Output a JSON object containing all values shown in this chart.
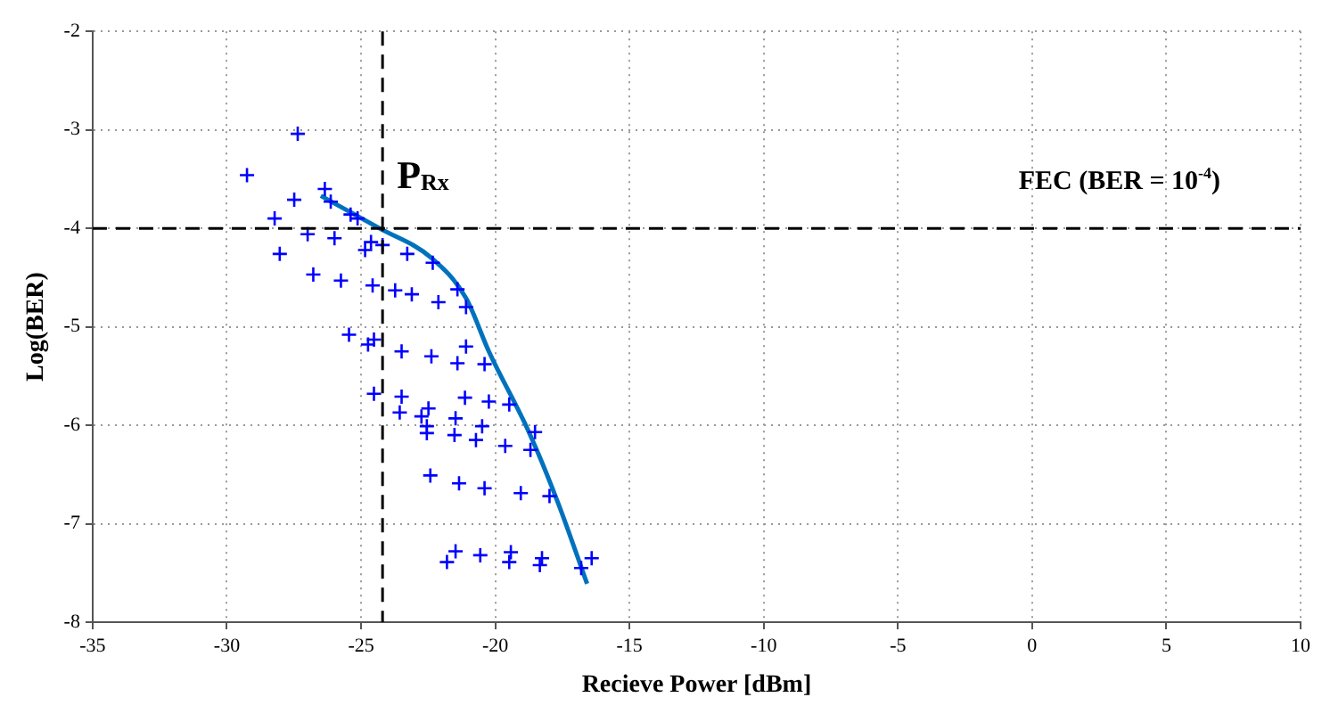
{
  "chart_data": {
    "type": "scatter",
    "xlabel": "Recieve Power [dBm]",
    "ylabel": "Log(BER)",
    "xlim": [
      -35,
      10
    ],
    "xticks": [
      -35,
      -30,
      -25,
      -20,
      -15,
      -10,
      -5,
      0,
      5,
      10
    ],
    "ylim": [
      -8,
      -2
    ],
    "yticks": [
      -8,
      -7,
      -6,
      -5,
      -4,
      -3,
      -2
    ],
    "grid": true,
    "legend": false,
    "marker": "cross",
    "series": [
      {
        "color": "#0000ff",
        "x": [
          -29.25,
          -27.36,
          -26.35,
          -27.49,
          -28.22,
          -26.13,
          -25.39,
          -25.13,
          -26.99,
          -25.99,
          -28.03,
          -24.85,
          -24.63,
          -24.2,
          -23.28,
          -22.33,
          -26.78,
          -25.75,
          -24.57,
          -23.73,
          -23.11,
          -22.12,
          -21.41,
          -21.09,
          -25.45,
          -24.74,
          -24.52,
          -23.49,
          -22.38,
          -21.41,
          -21.09,
          -20.4,
          -24.52,
          -23.49,
          -23.56,
          -22.49,
          -22.75,
          -22.55,
          -22.55,
          -21.13,
          -20.24,
          -19.48,
          -21.48,
          -21.52,
          -20.72,
          -20.49,
          -18.52,
          -19.63,
          -18.69,
          -22.42,
          -21.35,
          -20.4,
          -19.05,
          -17.98,
          -21.8,
          -21.48,
          -20.56,
          -19.42,
          -19.48,
          -18.26,
          -18.34,
          -16.8,
          -16.41
        ],
        "values": [
          -3.46,
          -3.04,
          -3.6,
          -3.71,
          -3.9,
          -3.73,
          -3.86,
          -3.9,
          -4.06,
          -4.1,
          -4.26,
          -4.22,
          -4.14,
          -4.17,
          -4.26,
          -4.35,
          -4.47,
          -4.53,
          -4.58,
          -4.63,
          -4.67,
          -4.75,
          -4.62,
          -4.8,
          -5.08,
          -5.18,
          -5.13,
          -5.25,
          -5.3,
          -5.37,
          -5.2,
          -5.38,
          -5.68,
          -5.71,
          -5.87,
          -5.83,
          -5.91,
          -6.01,
          -6.08,
          -5.72,
          -5.76,
          -5.79,
          -5.93,
          -6.1,
          -6.15,
          -6.01,
          -6.07,
          -6.21,
          -6.25,
          -6.51,
          -6.59,
          -6.64,
          -6.69,
          -6.72,
          -7.39,
          -7.28,
          -7.32,
          -7.29,
          -7.39,
          -7.35,
          -7.42,
          -7.45,
          -7.35
        ]
      },
      {
        "type": "line",
        "color": "#0072bd",
        "marker": "none",
        "x": [
          -26.5,
          -24.31,
          -22.38,
          -21.09,
          -20.24,
          -18.73,
          -17.66,
          -16.58
        ],
        "values": [
          -3.67,
          -4.0,
          -4.3,
          -4.71,
          -5.25,
          -6.08,
          -6.79,
          -7.61
        ]
      }
    ],
    "ref_lines": [
      {
        "axis": "x",
        "value": -24.2,
        "label": "P$_{Rx}$",
        "color": "#000000",
        "line_style": "dashed"
      },
      {
        "axis": "y",
        "value": -4,
        "label": "FEC (BER = 10$^{-4}$)",
        "color": "#000000",
        "line_style": "dashed"
      }
    ]
  }
}
